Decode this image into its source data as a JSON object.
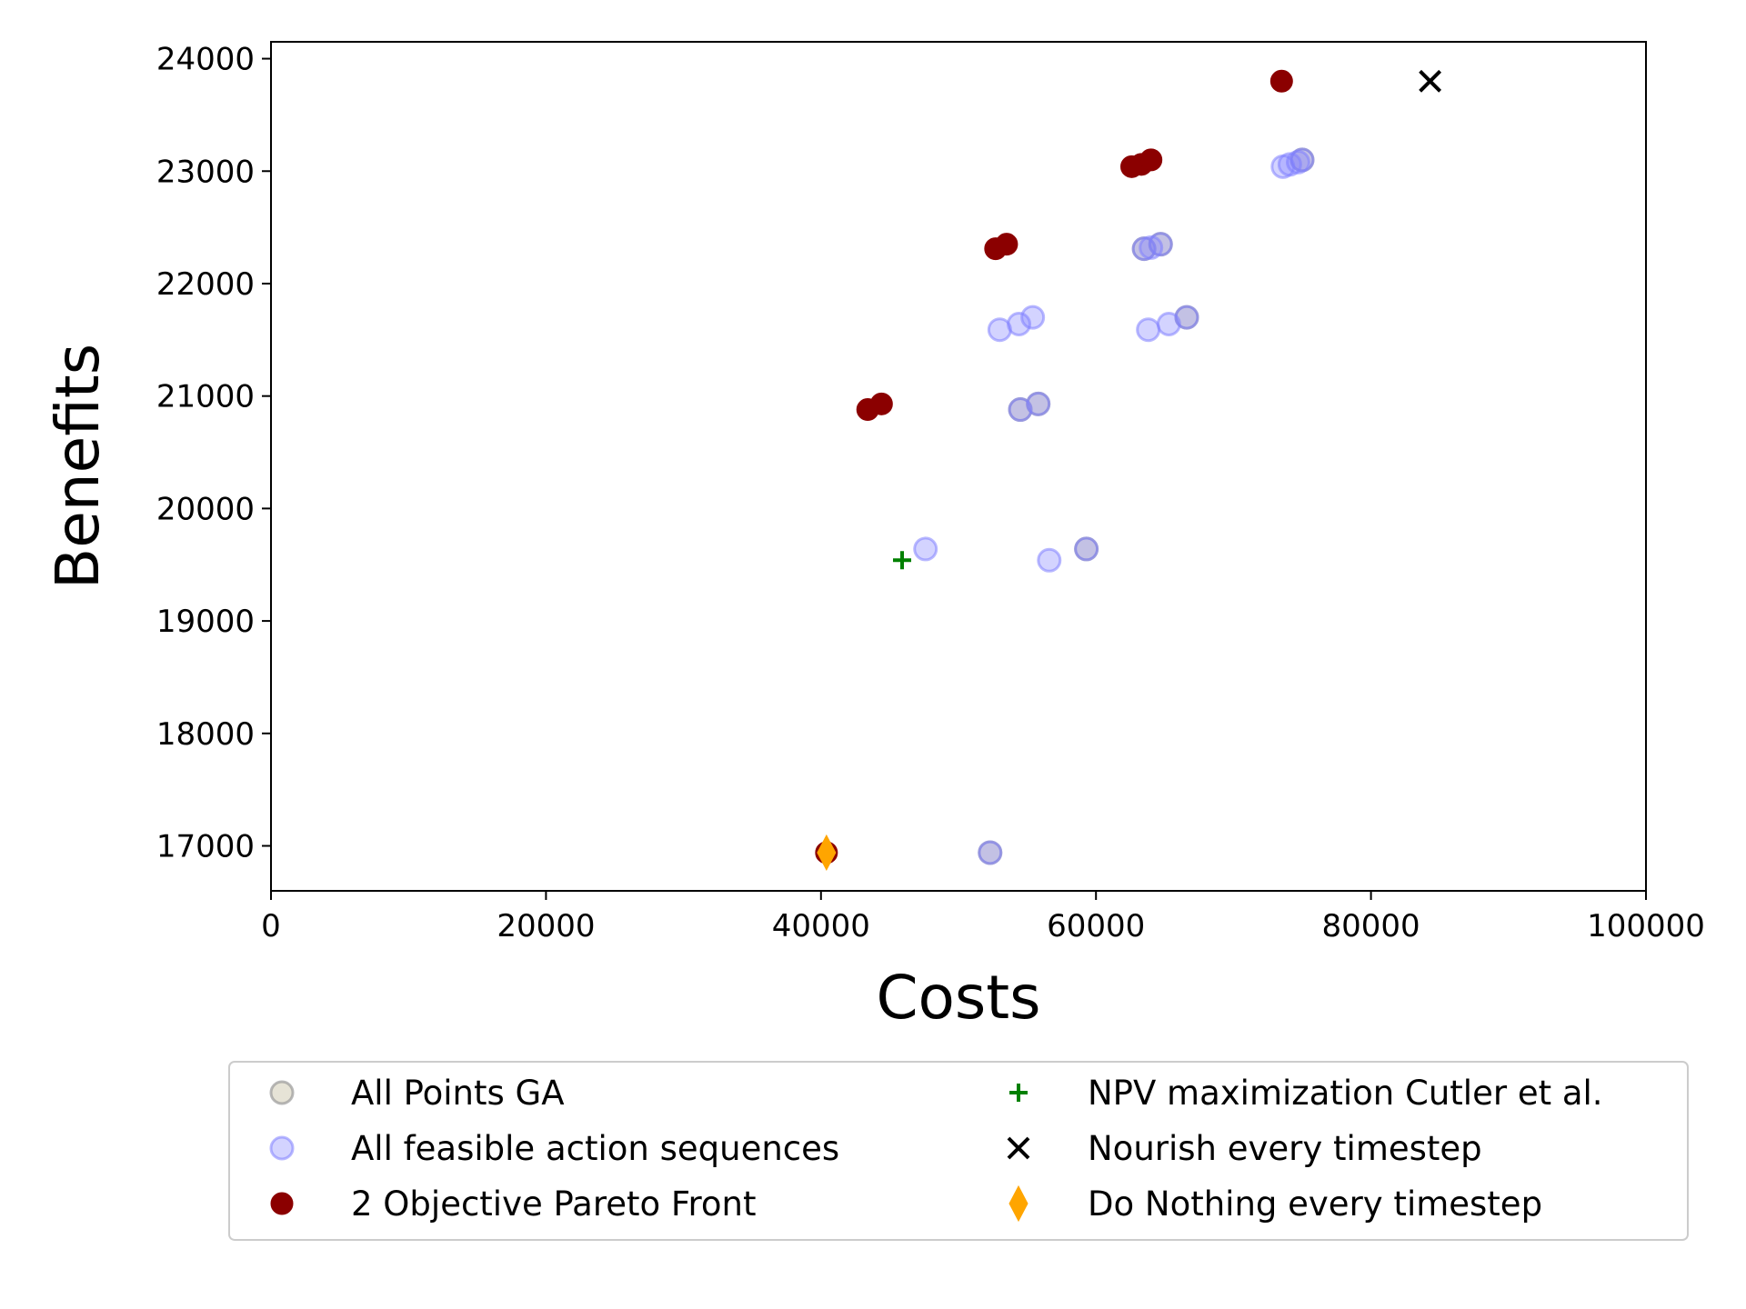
{
  "chart_data": {
    "type": "scatter",
    "xlabel": "Costs",
    "ylabel": "Benefits",
    "xlim": [
      0,
      100000
    ],
    "ylim": [
      16600,
      24150
    ],
    "x_ticks": [
      0,
      20000,
      40000,
      60000,
      80000,
      100000
    ],
    "y_ticks": [
      17000,
      18000,
      19000,
      20000,
      21000,
      22000,
      23000,
      24000
    ],
    "grid": false,
    "legend_position": "below-plot",
    "series": [
      {
        "name": "All Points GA",
        "marker": "circle",
        "color": "#f5f0d0",
        "points": [
          [
            52300,
            16940
          ],
          [
            54500,
            20880
          ],
          [
            55800,
            20930
          ],
          [
            59300,
            19640
          ],
          [
            63500,
            22310
          ],
          [
            64700,
            22350
          ],
          [
            75000,
            23100
          ],
          [
            66600,
            21700
          ]
        ]
      },
      {
        "name": "All feasible action sequences",
        "marker": "circle",
        "color": "#8080ff",
        "points": [
          [
            47600,
            19640
          ],
          [
            53000,
            21590
          ],
          [
            54400,
            21640
          ],
          [
            55400,
            21700
          ],
          [
            56600,
            19540
          ],
          [
            63800,
            21590
          ],
          [
            65300,
            21640
          ],
          [
            66600,
            21700
          ],
          [
            64000,
            22320
          ],
          [
            73600,
            23040
          ],
          [
            74100,
            23060
          ],
          [
            74700,
            23080
          ],
          [
            75000,
            23100
          ],
          [
            52300,
            16940
          ],
          [
            54500,
            20880
          ],
          [
            55800,
            20930
          ],
          [
            59300,
            19640
          ],
          [
            63500,
            22310
          ],
          [
            64700,
            22350
          ]
        ]
      },
      {
        "name": "2 Objective Pareto Front",
        "marker": "circle",
        "color": "#8b0000",
        "points": [
          [
            40400,
            16940
          ],
          [
            43400,
            20880
          ],
          [
            44400,
            20930
          ],
          [
            52700,
            22310
          ],
          [
            53500,
            22350
          ],
          [
            62600,
            23040
          ],
          [
            63300,
            23060
          ],
          [
            64000,
            23100
          ],
          [
            73500,
            23800
          ]
        ]
      },
      {
        "name": "NPV maximization Cutler et al.",
        "marker": "plus",
        "color": "#008000",
        "points": [
          [
            45900,
            19540
          ]
        ]
      },
      {
        "name": "Nourish every timestep",
        "marker": "x",
        "color": "#000000",
        "points": [
          [
            84300,
            23800
          ]
        ]
      },
      {
        "name": "Do Nothing every timestep",
        "marker": "diamond",
        "color": "#ffa500",
        "points": [
          [
            40400,
            16940
          ]
        ]
      }
    ],
    "legend": [
      "All Points GA",
      "NPV maximization Cutler et al.",
      "All feasible action sequences",
      "Nourish every timestep",
      "2 Objective Pareto Front",
      "Do Nothing every timestep"
    ]
  }
}
